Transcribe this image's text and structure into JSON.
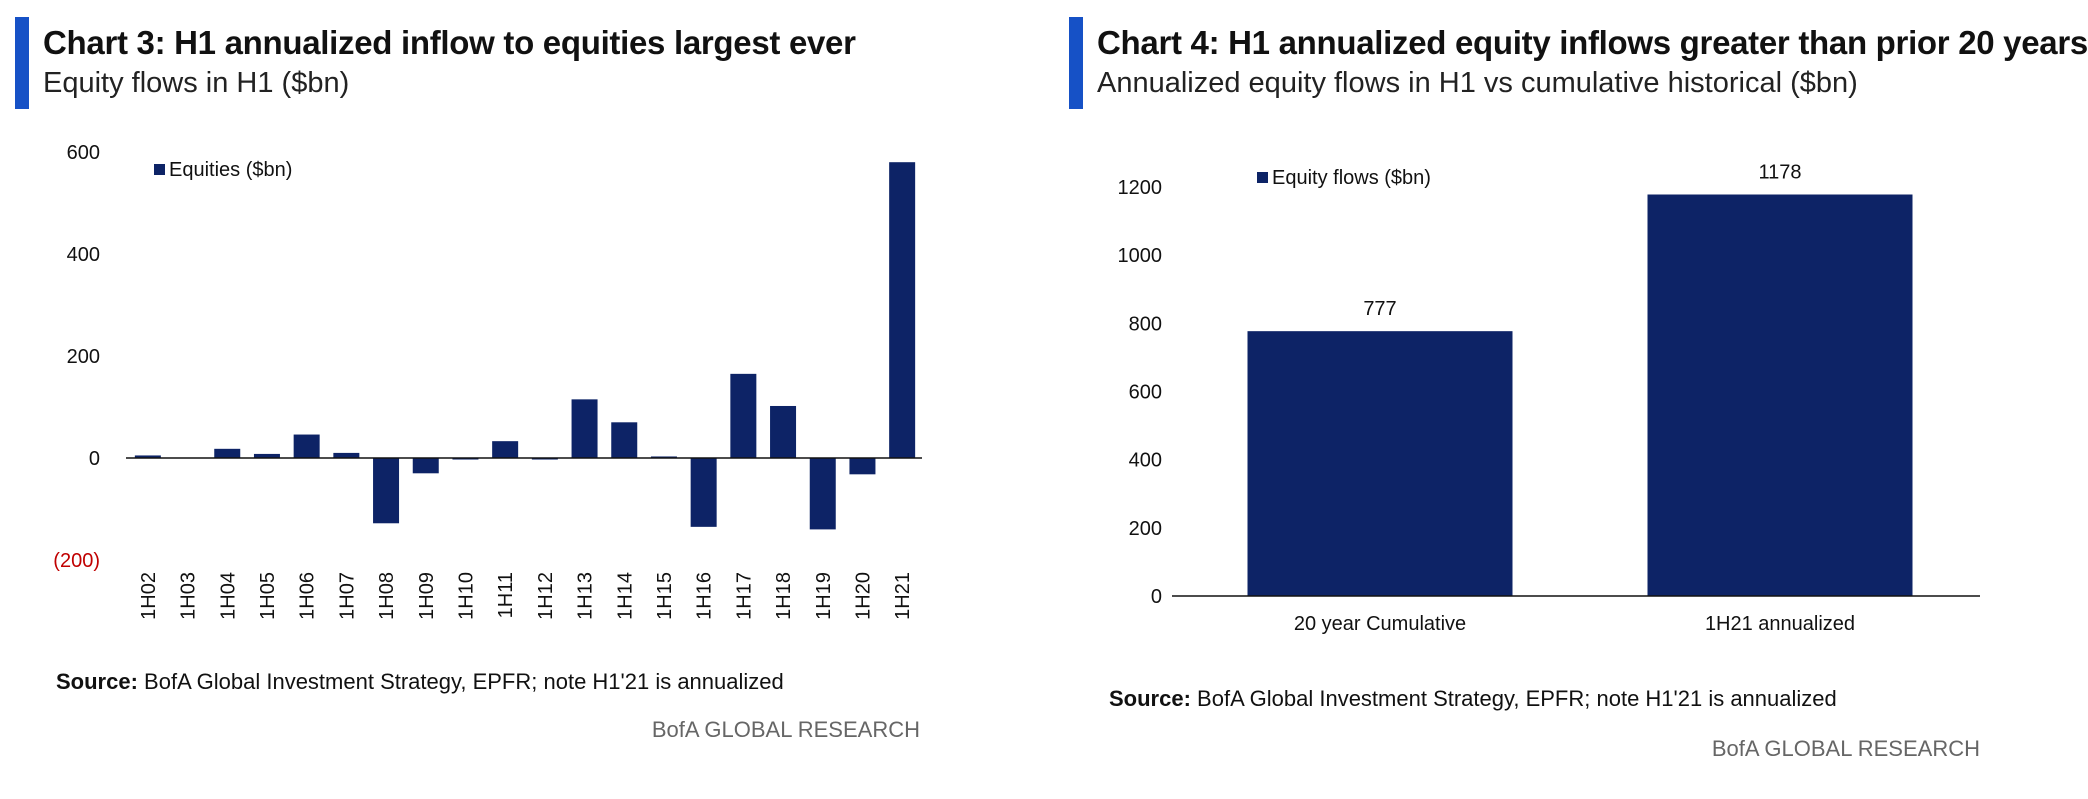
{
  "charts": [
    {
      "title": "Chart 3: H1 annualized inflow to equities largest ever",
      "subtitle": "Equity flows in H1 ($bn)",
      "source_label": "Source:",
      "source_text": "BofA Global Investment Strategy, EPFR; note H1'21 is annualized",
      "brand": "BofA GLOBAL RESEARCH"
    },
    {
      "title": "Chart 4: H1 annualized equity inflows greater than prior 20 years",
      "subtitle": "Annualized equity flows in H1 vs cumulative historical ($bn)",
      "source_label": "Source:",
      "source_text": "BofA Global Investment Strategy, EPFR; note H1'21 is annualized",
      "brand": "BofA GLOBAL RESEARCH"
    }
  ],
  "chart_data": [
    {
      "type": "bar",
      "title": "Chart 3: H1 annualized inflow to equities largest ever",
      "subtitle": "Equity flows in H1 ($bn)",
      "categories": [
        "1H02",
        "1H03",
        "1H04",
        "1H05",
        "1H06",
        "1H07",
        "1H08",
        "1H09",
        "1H10",
        "1H11",
        "1H12",
        "1H13",
        "1H14",
        "1H15",
        "1H16",
        "1H17",
        "1H18",
        "1H19",
        "1H20",
        "1H21"
      ],
      "series": [
        {
          "name": "Equities ($bn)",
          "values": [
            5,
            0,
            18,
            8,
            46,
            10,
            -128,
            -30,
            -3,
            33,
            -3,
            115,
            70,
            3,
            -135,
            165,
            102,
            -140,
            -32,
            580
          ]
        }
      ],
      "ylim": [
        -200,
        600
      ],
      "yticks": [
        -200,
        0,
        200,
        400,
        600
      ],
      "ytick_labels": [
        "(200)",
        "0",
        "200",
        "400",
        "600"
      ],
      "legend_position": "top-left",
      "grid": false,
      "color": "#0d2366",
      "negative_label_color": "#c00000"
    },
    {
      "type": "bar",
      "title": "Chart 4: H1 annualized equity inflows greater than prior 20 years",
      "subtitle": "Annualized equity flows in H1 vs cumulative historical ($bn)",
      "categories": [
        "20 year Cumulative",
        "1H21 annualized"
      ],
      "series": [
        {
          "name": "Equity flows ($bn)",
          "values": [
            777,
            1178
          ]
        }
      ],
      "data_labels": [
        "777",
        "1178"
      ],
      "ylim": [
        0,
        1200
      ],
      "yticks": [
        0,
        200,
        400,
        600,
        800,
        1000,
        1200
      ],
      "legend_position": "top-left",
      "grid": false,
      "color": "#0d2366"
    }
  ]
}
